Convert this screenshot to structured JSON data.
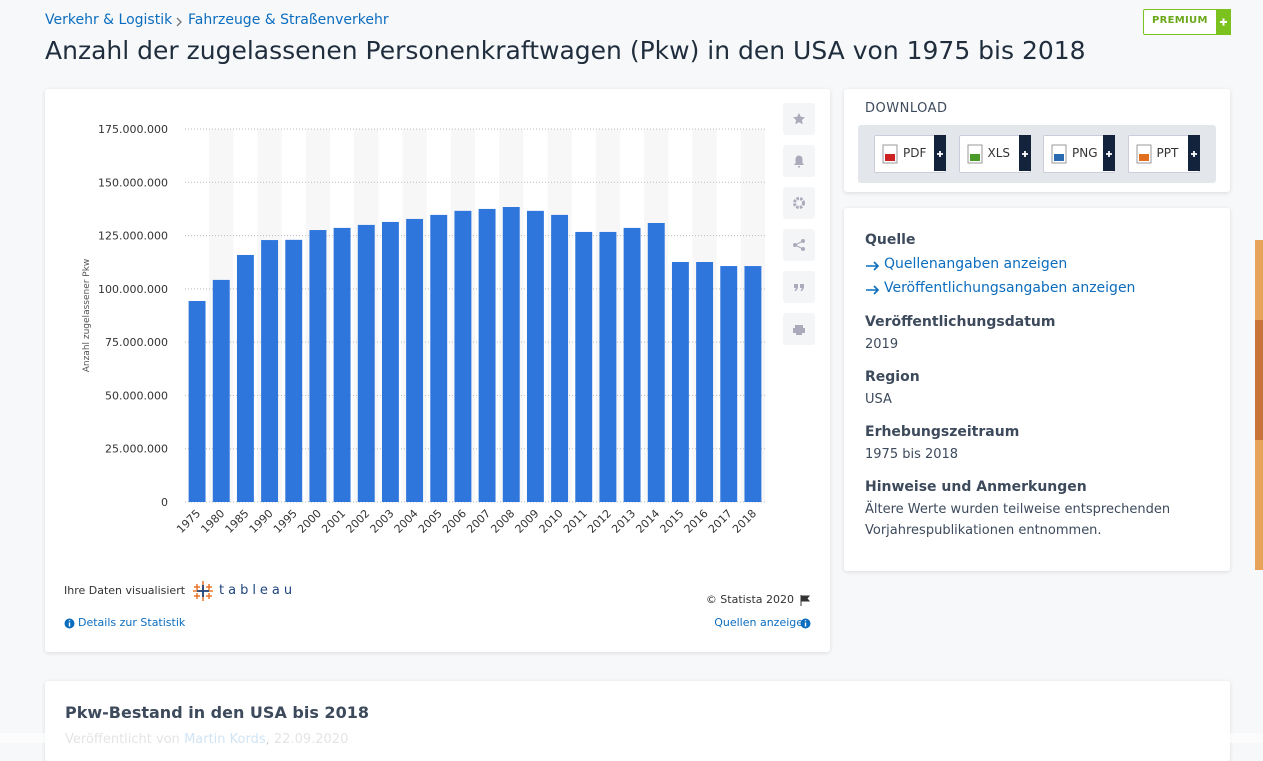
{
  "breadcrumb": [
    "Verkehr & Logistik",
    "Fahrzeuge & Straßenverkehr"
  ],
  "premium": "PREMIUM",
  "title": "Anzahl der zugelassenen Personenkraftwagen (Pkw) in den USA von 1975 bis 2018",
  "chart_data": {
    "type": "bar",
    "y_label": "Anzahl zugelassener Pkw",
    "categories": [
      "1975",
      "1980",
      "1985",
      "1990",
      "1995",
      "2000",
      "2001",
      "2002",
      "2003",
      "2004",
      "2005",
      "2006",
      "2007",
      "2008",
      "2009",
      "2010",
      "2011",
      "2012",
      "2013",
      "2014",
      "2015",
      "2016",
      "2017",
      "2018"
    ],
    "values": [
      94300000,
      104200000,
      115900000,
      122900000,
      123000000,
      127600000,
      128600000,
      130000000,
      131400000,
      132800000,
      134700000,
      136600000,
      137500000,
      138400000,
      136600000,
      134700000,
      126700000,
      126700000,
      128600000,
      130900000,
      112600000,
      112600000,
      110700000,
      110700000
    ],
    "color": "#2f76dc",
    "ylim": [
      0,
      175000000
    ],
    "yticks": [
      0,
      {
        "value": 25000000,
        "label": "25.000.000"
      },
      {
        "value": 50000000,
        "label": "50.000.000"
      },
      {
        "value": 75000000,
        "label": "75.000.000"
      },
      {
        "value": 100000000,
        "label": "100.000.000"
      },
      {
        "value": 125000000,
        "label": "125.000.000"
      },
      {
        "value": 150000000,
        "label": "150.000.000"
      },
      {
        "value": 175000000,
        "label": "175.000.000"
      }
    ],
    "grid": true
  },
  "chart_footer": {
    "visualized_by": "Ihre Daten visualisiert",
    "tableau": "tableau",
    "copyright": "© Statista 2020",
    "details": "Details zur Statistik",
    "sources": "Quellen anzeigen"
  },
  "download": {
    "title": "DOWNLOAD",
    "formats": [
      "PDF",
      "XLS",
      "PNG",
      "PPT"
    ]
  },
  "info": {
    "source_heading": "Quelle",
    "source_links": [
      "Quellenangaben anzeigen",
      "Veröffentlichungsangaben anzeigen"
    ],
    "sections": [
      {
        "heading": "Veröffentlichungsdatum",
        "text": "2019"
      },
      {
        "heading": "Region",
        "text": "USA"
      },
      {
        "heading": "Erhebungszeitraum",
        "text": "1975 bis 2018"
      },
      {
        "heading": "Hinweise und Anmerkungen",
        "text": "Ältere Werte wurden teilweise entsprechenden Vorjahrespublikationen entnommen."
      }
    ]
  },
  "related": {
    "title": "Pkw-Bestand in den USA bis 2018",
    "byline": "Veröffentlicht von",
    "author": "Martin Kords",
    "date": ", 22.09.2020"
  }
}
